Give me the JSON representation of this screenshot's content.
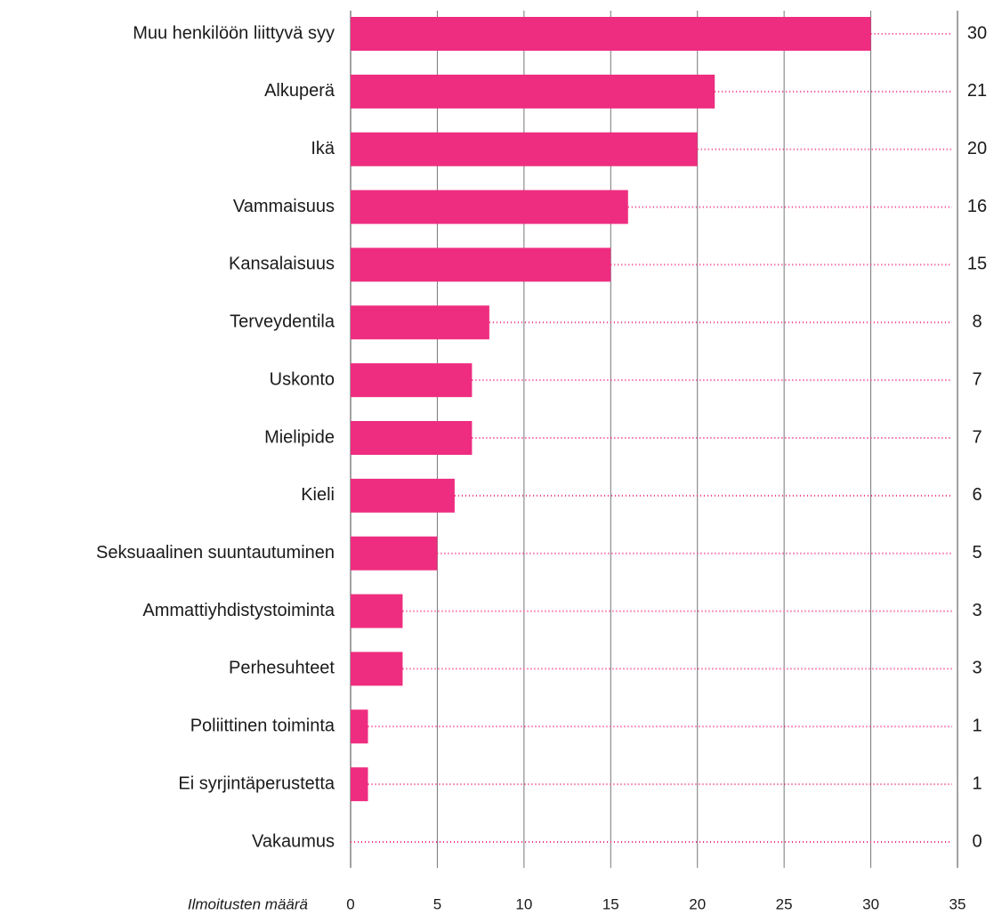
{
  "chart_data": {
    "type": "bar",
    "orientation": "horizontal",
    "categories": [
      "Muu henkilöön liittyvä syy",
      "Alkuperä",
      "Ikä",
      "Vammaisuus",
      "Kansalaisuus",
      "Terveydentila",
      "Uskonto",
      "Mielipide",
      "Kieli",
      "Seksuaalinen suuntautuminen",
      "Ammattiyhdistystoiminta",
      "Perhesuhteet",
      "Poliittinen toiminta",
      "Ei syrjintäperustetta",
      "Vakaumus"
    ],
    "values": [
      30,
      21,
      20,
      16,
      15,
      8,
      7,
      7,
      6,
      5,
      3,
      3,
      1,
      1,
      0
    ],
    "color": "#ee2d80",
    "xlabel": "Ilmoitusten määrä",
    "xlim": [
      0,
      35
    ],
    "xticks": [
      0,
      5,
      10,
      15,
      20,
      25,
      30,
      35
    ],
    "grid": true
  }
}
